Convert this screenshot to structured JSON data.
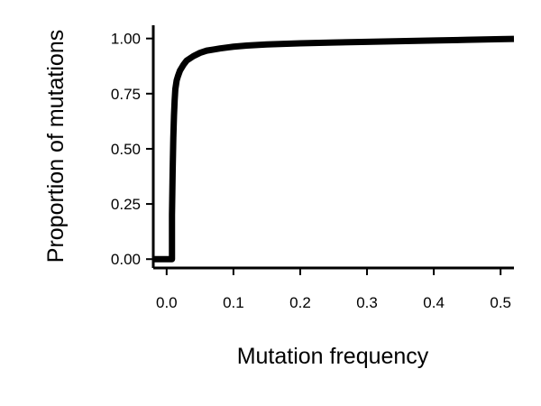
{
  "chart_data": {
    "type": "line",
    "title": "",
    "xlabel": "Mutation frequency",
    "ylabel": "Proportion of mutations",
    "xlim": [
      -0.02,
      0.52
    ],
    "ylim": [
      -0.04,
      1.06
    ],
    "x_ticks": [
      0.0,
      0.1,
      0.2,
      0.3,
      0.4,
      0.5
    ],
    "x_tick_labels": [
      "0.0",
      "0.1",
      "0.2",
      "0.3",
      "0.4",
      "0.5"
    ],
    "y_ticks": [
      0.0,
      0.25,
      0.5,
      0.75,
      1.0
    ],
    "y_tick_labels": [
      "0.00",
      "0.25",
      "0.50",
      "0.75",
      "1.00"
    ],
    "grid": false,
    "legend": "none",
    "colors": {
      "line": "#000000",
      "axis": "#000000"
    },
    "series": [
      {
        "x": [
          -0.02,
          0.008,
          0.008,
          0.009,
          0.01,
          0.011,
          0.012,
          0.013,
          0.015,
          0.017,
          0.02,
          0.025,
          0.03,
          0.04,
          0.05,
          0.06,
          0.07,
          0.08,
          0.1,
          0.12,
          0.15,
          0.2,
          0.25,
          0.3,
          0.35,
          0.4,
          0.45,
          0.5,
          0.52
        ],
        "y": [
          0.0,
          0.0,
          0.2,
          0.4,
          0.55,
          0.65,
          0.72,
          0.77,
          0.81,
          0.83,
          0.855,
          0.88,
          0.9,
          0.92,
          0.935,
          0.945,
          0.95,
          0.955,
          0.963,
          0.968,
          0.973,
          0.978,
          0.982,
          0.985,
          0.988,
          0.991,
          0.994,
          0.997,
          0.998
        ]
      }
    ]
  }
}
